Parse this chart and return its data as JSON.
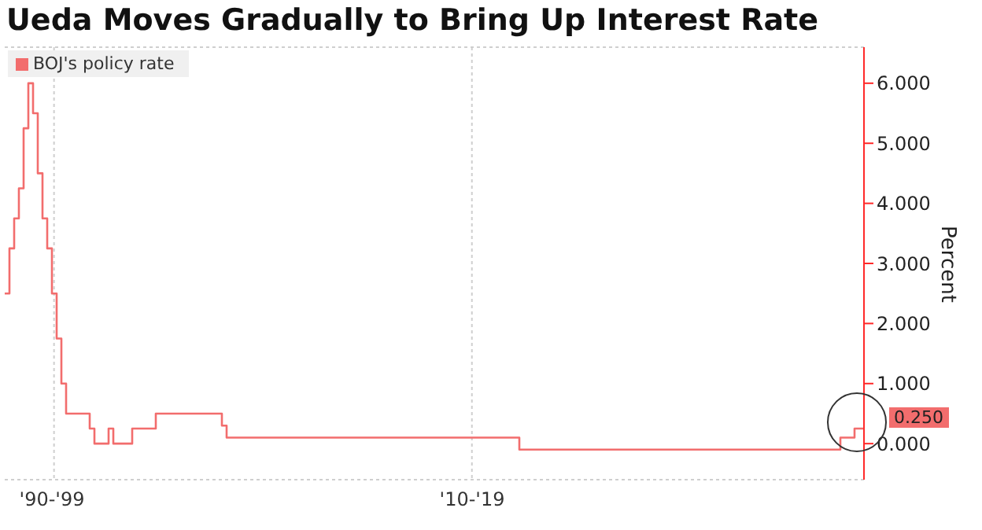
{
  "chart_data": {
    "type": "step",
    "title": "Ueda Moves Gradually to Bring Up Interest Rate",
    "ylabel": "Percent",
    "categories": [
      null,
      null,
      null,
      null,
      null,
      null,
      null,
      null,
      null,
      null,
      "'90-'99",
      null,
      null,
      null,
      null,
      null,
      null,
      null,
      null,
      null,
      null,
      null,
      null,
      null,
      null,
      null,
      null,
      null,
      null,
      null,
      null,
      null,
      null,
      null,
      null,
      null,
      null,
      null,
      null,
      null,
      null,
      null,
      null,
      null,
      null,
      null,
      null,
      null,
      null,
      null,
      null,
      null,
      null,
      null,
      null,
      null,
      null,
      null,
      null,
      null,
      null,
      null,
      null,
      null,
      null,
      null,
      null,
      null,
      null,
      null,
      null,
      null,
      null,
      null,
      null,
      null,
      null,
      null,
      null,
      null,
      null,
      null,
      null,
      null,
      null,
      null,
      null,
      null,
      null,
      null,
      null,
      null,
      null,
      null,
      null,
      null,
      null,
      null,
      null,
      "'10-'19",
      null,
      null,
      null,
      null,
      null,
      null,
      null,
      null,
      null,
      null,
      null,
      null,
      null,
      null,
      null,
      null,
      null,
      null,
      null,
      null,
      null,
      null,
      null,
      null,
      null,
      null,
      null,
      null,
      null,
      null,
      null,
      null,
      null,
      null,
      null,
      null,
      null,
      null,
      null,
      null,
      null,
      null,
      null,
      null,
      null,
      null,
      null,
      null,
      null,
      null,
      null,
      null,
      null,
      null,
      null,
      null,
      null,
      null,
      null,
      null,
      null,
      null,
      null,
      null,
      null,
      null,
      null,
      null,
      null,
      null,
      null,
      null,
      null,
      null,
      null,
      null,
      null,
      null,
      null,
      null,
      null,
      null,
      null
    ],
    "series": [
      {
        "name": "BOJ's policy rate",
        "color": "#f26d6d",
        "values": [
          2.5,
          3.25,
          3.75,
          4.25,
          5.25,
          6,
          5.5,
          4.5,
          3.75,
          3.25,
          2.5,
          1.75,
          1.0,
          0.5,
          0.5,
          0.5,
          0.5,
          0.5,
          0.25,
          0,
          0,
          0,
          0.25,
          0,
          0,
          0,
          0,
          0.25,
          0.25,
          0.25,
          0.25,
          0.25,
          0.5,
          0.5,
          0.5,
          0.5,
          0.5,
          0.5,
          0.5,
          0.5,
          0.5,
          0.5,
          0.5,
          0.5,
          0.5,
          0.5,
          0.3,
          0.1,
          0.1,
          0.1,
          0.1,
          0.1,
          0.1,
          0.1,
          0.1,
          0.1,
          0.1,
          0.1,
          0.1,
          0.1,
          0.1,
          0.1,
          0.1,
          0.1,
          0.1,
          0.1,
          0.1,
          0.1,
          0.1,
          0.1,
          0.1,
          0.1,
          0.1,
          0.1,
          0.1,
          0.1,
          0.1,
          0.1,
          0.1,
          0.1,
          0.1,
          0.1,
          0.1,
          0.1,
          0.1,
          0.1,
          0.1,
          0.1,
          0.1,
          0.1,
          0.1,
          0.1,
          0.1,
          0.1,
          0.1,
          0.1,
          0.1,
          0.1,
          0.1,
          0.1,
          0.1,
          0.1,
          0.1,
          0.1,
          0.1,
          0.1,
          0.1,
          0.1,
          0.1,
          -0.1,
          -0.1,
          -0.1,
          -0.1,
          -0.1,
          -0.1,
          -0.1,
          -0.1,
          -0.1,
          -0.1,
          -0.1,
          -0.1,
          -0.1,
          -0.1,
          -0.1,
          -0.1,
          -0.1,
          -0.1,
          -0.1,
          -0.1,
          -0.1,
          -0.1,
          -0.1,
          -0.1,
          -0.1,
          -0.1,
          -0.1,
          -0.1,
          -0.1,
          -0.1,
          -0.1,
          -0.1,
          -0.1,
          -0.1,
          -0.1,
          -0.1,
          -0.1,
          -0.1,
          -0.1,
          -0.1,
          -0.1,
          -0.1,
          -0.1,
          -0.1,
          -0.1,
          -0.1,
          -0.1,
          -0.1,
          -0.1,
          -0.1,
          -0.1,
          -0.1,
          -0.1,
          -0.1,
          -0.1,
          -0.1,
          -0.1,
          -0.1,
          -0.1,
          -0.1,
          -0.1,
          -0.1,
          -0.1,
          -0.1,
          -0.1,
          -0.1,
          -0.1,
          -0.1,
          0.1,
          0.1,
          0.1,
          0.25,
          0.25,
          0.25
        ]
      }
    ],
    "ylim": [
      -0.6,
      6.6
    ],
    "yticks": [
      {
        "value": 0,
        "label": "0.000"
      },
      {
        "value": 1,
        "label": "1.000"
      },
      {
        "value": 2,
        "label": "2.000"
      },
      {
        "value": 3,
        "label": "3.000"
      },
      {
        "value": 4,
        "label": "4.000"
      },
      {
        "value": 5,
        "label": "5.000"
      },
      {
        "value": 6,
        "label": "6.000"
      }
    ],
    "annotations": [
      "0.250"
    ],
    "grid": true,
    "legend": "top left",
    "marker": "none",
    "line_style": "solid"
  }
}
